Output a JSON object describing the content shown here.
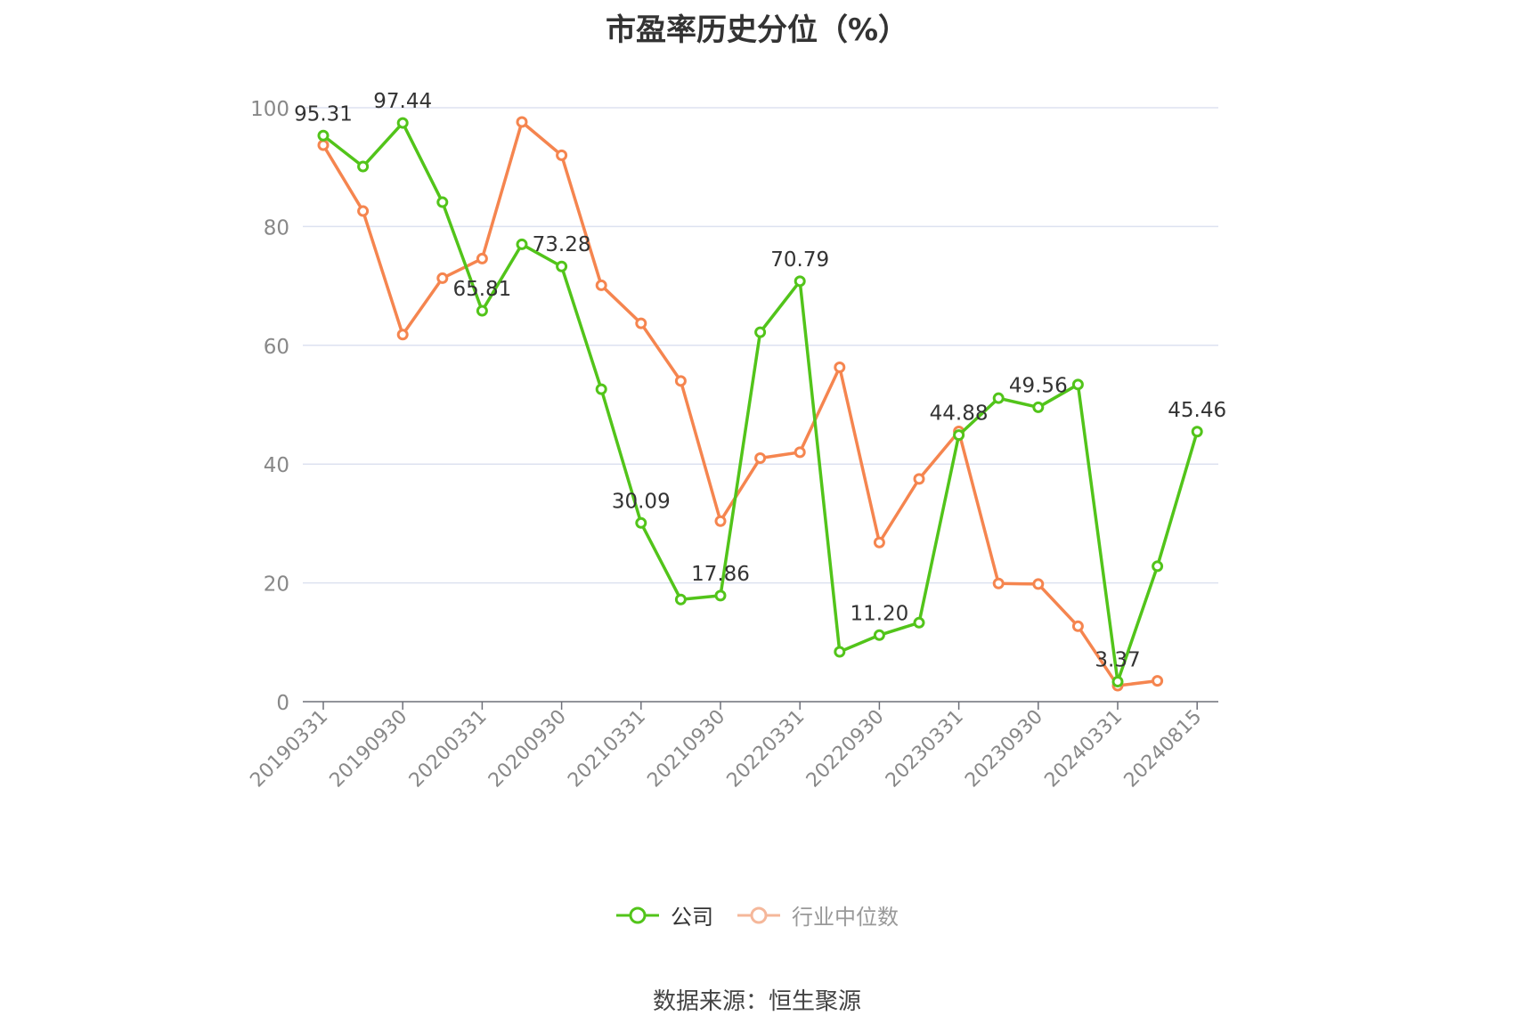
{
  "chart_data": {
    "type": "line",
    "title": "市盈率历史分位（%）",
    "x": [
      "20190331",
      "20190630",
      "20190930",
      "20191231",
      "20200331",
      "20200630",
      "20200930",
      "20201231",
      "20210331",
      "20210630",
      "20210930",
      "20211231",
      "20220331",
      "20220630",
      "20220930",
      "20221231",
      "20230331",
      "20230630",
      "20230930",
      "20231231",
      "20240331",
      "20240630",
      "20240815"
    ],
    "x_tick_labels": [
      "20190331",
      "20190930",
      "20200331",
      "20200930",
      "20210331",
      "20210930",
      "20220331",
      "20220930",
      "20230331",
      "20230930",
      "20240331",
      "20240815"
    ],
    "series": [
      {
        "name": "公司",
        "color": "#52c41a",
        "values": [
          95.31,
          90.1,
          97.44,
          84.1,
          65.81,
          77.0,
          73.28,
          52.6,
          30.09,
          17.2,
          17.86,
          62.2,
          70.79,
          8.4,
          11.2,
          13.3,
          44.88,
          51.1,
          49.56,
          53.4,
          3.37,
          22.8,
          45.46
        ],
        "labels": [
          "95.31",
          null,
          "97.44",
          null,
          "65.81",
          null,
          "73.28",
          null,
          "30.09",
          null,
          "17.86",
          null,
          "70.79",
          null,
          "11.20",
          null,
          "44.88",
          null,
          "49.56",
          null,
          "3.37",
          null,
          "45.46"
        ]
      },
      {
        "name": "行业中位数",
        "color": "#f5854f",
        "values": [
          93.7,
          82.6,
          61.8,
          71.3,
          74.6,
          97.6,
          92.0,
          70.1,
          63.7,
          54.0,
          30.4,
          41.0,
          42.0,
          56.3,
          26.8,
          37.5,
          45.5,
          19.9,
          19.8,
          12.7,
          2.7,
          3.5,
          null
        ]
      }
    ],
    "ylim": [
      0,
      100
    ],
    "y_ticks": [
      0,
      20,
      40,
      60,
      80,
      100
    ],
    "grid": true,
    "legend_position": "bottom-center"
  },
  "source": "数据来源：恒生聚源"
}
